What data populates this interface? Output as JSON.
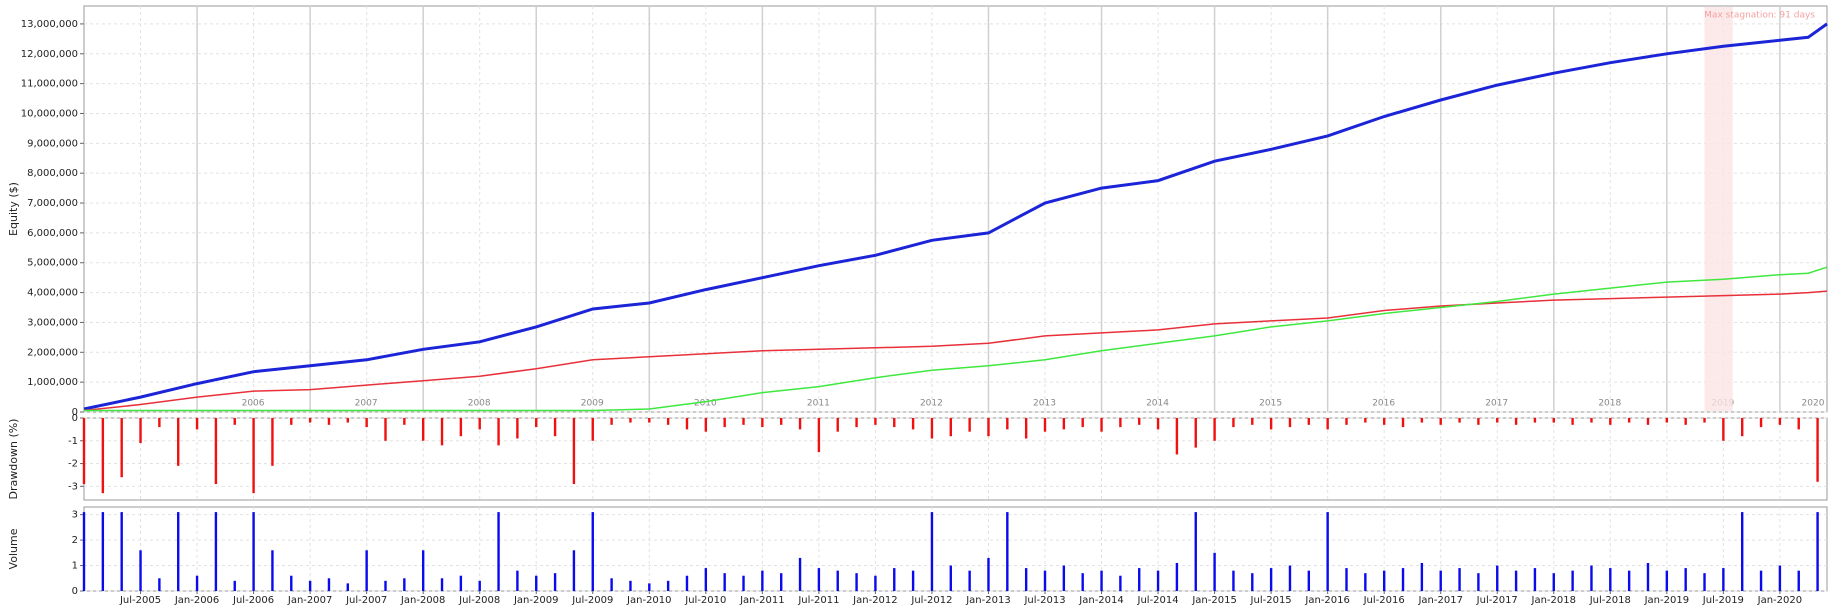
{
  "chart_data": [
    {
      "type": "line",
      "ylabel": "Equity ($)",
      "x": [
        "2005-01",
        "2005-07",
        "2006-01",
        "2006-07",
        "2007-01",
        "2007-07",
        "2008-01",
        "2008-07",
        "2009-01",
        "2009-07",
        "2010-01",
        "2010-07",
        "2011-01",
        "2011-07",
        "2012-01",
        "2012-07",
        "2013-01",
        "2013-07",
        "2014-01",
        "2014-07",
        "2015-01",
        "2015-07",
        "2016-01",
        "2016-07",
        "2017-01",
        "2017-07",
        "2018-01",
        "2018-07",
        "2019-01",
        "2019-07",
        "2020-01",
        "2020-04",
        "2020-06"
      ],
      "series": [
        {
          "color": "#1c24d8",
          "width": 3,
          "values": [
            100000,
            500000,
            950000,
            1350000,
            1550000,
            1750000,
            2100000,
            2350000,
            2850000,
            3450000,
            3650000,
            4100000,
            4500000,
            4900000,
            5250000,
            5750000,
            6000000,
            7000000,
            7500000,
            7750000,
            8400000,
            8800000,
            9250000,
            9900000,
            10450000,
            10950000,
            11350000,
            11700000,
            12000000,
            12250000,
            12450000,
            12550000,
            13000000
          ]
        },
        {
          "color": "#e8303a",
          "width": 1.5,
          "values": [
            50000,
            250000,
            500000,
            700000,
            750000,
            900000,
            1050000,
            1200000,
            1450000,
            1750000,
            1850000,
            1950000,
            2050000,
            2100000,
            2150000,
            2200000,
            2300000,
            2550000,
            2650000,
            2750000,
            2950000,
            3050000,
            3150000,
            3400000,
            3550000,
            3650000,
            3750000,
            3800000,
            3850000,
            3900000,
            3950000,
            4000000,
            4050000
          ]
        },
        {
          "color": "#3ee83e",
          "width": 1.5,
          "values": [
            50000,
            50000,
            50000,
            50000,
            50000,
            50000,
            50000,
            50000,
            50000,
            50000,
            100000,
            350000,
            650000,
            850000,
            1150000,
            1400000,
            1550000,
            1750000,
            2050000,
            2300000,
            2550000,
            2850000,
            3050000,
            3300000,
            3500000,
            3700000,
            3950000,
            4150000,
            4350000,
            4450000,
            4600000,
            4650000,
            4850000
          ]
        }
      ],
      "xlim": [
        "2005-01",
        "2020-06"
      ],
      "ylim": [
        0,
        13600000
      ],
      "yticks": [
        0,
        {
          "value": 1000000,
          "label": "1,000,000"
        },
        {
          "value": 2000000,
          "label": "2,000,000"
        },
        {
          "value": 3000000,
          "label": "3,000,000"
        },
        {
          "value": 4000000,
          "label": "4,000,000"
        },
        {
          "value": 5000000,
          "label": "5,000,000"
        },
        {
          "value": 6000000,
          "label": "6,000,000"
        },
        {
          "value": 7000000,
          "label": "7,000,000"
        },
        {
          "value": 8000000,
          "label": "8,000,000"
        },
        {
          "value": 9000000,
          "label": "9,000,000"
        },
        {
          "value": 10000000,
          "label": "10,000,000"
        },
        {
          "value": 11000000,
          "label": "11,000,000"
        },
        {
          "value": 12000000,
          "label": "12,000,000"
        },
        {
          "value": 13000000,
          "label": "13,000,000"
        }
      ],
      "year_markers": [
        {
          "value": "2006-01",
          "label": "2006"
        },
        {
          "value": "2007-01",
          "label": "2007"
        },
        {
          "value": "2008-01",
          "label": "2008"
        },
        {
          "value": "2009-01",
          "label": "2009"
        },
        {
          "value": "2010-01",
          "label": "2010"
        },
        {
          "value": "2011-01",
          "label": "2011"
        },
        {
          "value": "2012-01",
          "label": "2012"
        },
        {
          "value": "2013-01",
          "label": "2013"
        },
        {
          "value": "2014-01",
          "label": "2014"
        },
        {
          "value": "2015-01",
          "label": "2015"
        },
        {
          "value": "2016-01",
          "label": "2016"
        },
        {
          "value": "2017-01",
          "label": "2017"
        },
        {
          "value": "2018-01",
          "label": "2018"
        },
        {
          "value": "2019-01",
          "label": "2019"
        },
        {
          "value": "2020-01",
          "label": "2020"
        }
      ],
      "annotation": {
        "text": "Max stagnation: 91 days",
        "x_start": "2019-05",
        "x_end": "2019-08"
      },
      "grid": true
    },
    {
      "type": "bar",
      "ylabel": "Drawdown (%)",
      "color": "#f01010",
      "x": [
        "2005-01",
        "2005-03",
        "2005-05",
        "2005-07",
        "2005-09",
        "2005-11",
        "2006-01",
        "2006-03",
        "2006-05",
        "2006-07",
        "2006-09",
        "2006-11",
        "2007-01",
        "2007-03",
        "2007-05",
        "2007-07",
        "2007-09",
        "2007-11",
        "2008-01",
        "2008-03",
        "2008-05",
        "2008-07",
        "2008-09",
        "2008-11",
        "2009-01",
        "2009-03",
        "2009-05",
        "2009-07",
        "2009-09",
        "2009-11",
        "2010-01",
        "2010-03",
        "2010-05",
        "2010-07",
        "2010-09",
        "2010-11",
        "2011-01",
        "2011-03",
        "2011-05",
        "2011-07",
        "2011-09",
        "2011-11",
        "2012-01",
        "2012-03",
        "2012-05",
        "2012-07",
        "2012-09",
        "2012-11",
        "2013-01",
        "2013-03",
        "2013-05",
        "2013-07",
        "2013-09",
        "2013-11",
        "2014-01",
        "2014-03",
        "2014-05",
        "2014-07",
        "2014-09",
        "2014-11",
        "2015-01",
        "2015-03",
        "2015-05",
        "2015-07",
        "2015-09",
        "2015-11",
        "2016-01",
        "2016-03",
        "2016-05",
        "2016-07",
        "2016-09",
        "2016-11",
        "2017-01",
        "2017-03",
        "2017-05",
        "2017-07",
        "2017-09",
        "2017-11",
        "2018-01",
        "2018-03",
        "2018-05",
        "2018-07",
        "2018-09",
        "2018-11",
        "2019-01",
        "2019-03",
        "2019-05",
        "2019-07",
        "2019-09",
        "2019-11",
        "2020-01",
        "2020-03",
        "2020-05"
      ],
      "values": [
        -2.9,
        -3.3,
        -2.6,
        -1.1,
        -0.4,
        -2.1,
        -0.5,
        -2.9,
        -0.3,
        -3.3,
        -2.1,
        -0.3,
        -0.2,
        -0.3,
        -0.2,
        -0.4,
        -1.0,
        -0.3,
        -1.0,
        -1.2,
        -0.8,
        -0.5,
        -1.2,
        -0.9,
        -0.4,
        -0.8,
        -2.9,
        -1.0,
        -0.3,
        -0.2,
        -0.2,
        -0.3,
        -0.5,
        -0.6,
        -0.4,
        -0.3,
        -0.4,
        -0.3,
        -0.5,
        -1.5,
        -0.6,
        -0.4,
        -0.3,
        -0.4,
        -0.5,
        -0.9,
        -0.8,
        -0.6,
        -0.8,
        -0.5,
        -0.9,
        -0.6,
        -0.5,
        -0.4,
        -0.6,
        -0.4,
        -0.3,
        -0.5,
        -1.6,
        -1.3,
        -1.0,
        -0.4,
        -0.3,
        -0.5,
        -0.4,
        -0.3,
        -0.5,
        -0.3,
        -0.2,
        -0.3,
        -0.4,
        -0.2,
        -0.3,
        -0.2,
        -0.3,
        -0.2,
        -0.3,
        -0.2,
        -0.2,
        -0.3,
        -0.2,
        -0.3,
        -0.2,
        -0.3,
        -0.2,
        -0.3,
        -0.2,
        -1.0,
        -0.8,
        -0.4,
        -0.3,
        -0.5,
        -2.8
      ],
      "xlim": [
        "2005-01",
        "2020-06"
      ],
      "ylim": [
        -3.6,
        0
      ],
      "yticks": [
        0,
        -1,
        -2,
        -3
      ],
      "grid": true
    },
    {
      "type": "bar",
      "ylabel": "Volume",
      "color": "#0a0aee",
      "x": [
        "2005-01",
        "2005-03",
        "2005-05",
        "2005-07",
        "2005-09",
        "2005-11",
        "2006-01",
        "2006-03",
        "2006-05",
        "2006-07",
        "2006-09",
        "2006-11",
        "2007-01",
        "2007-03",
        "2007-05",
        "2007-07",
        "2007-09",
        "2007-11",
        "2008-01",
        "2008-03",
        "2008-05",
        "2008-07",
        "2008-09",
        "2008-11",
        "2009-01",
        "2009-03",
        "2009-05",
        "2009-07",
        "2009-09",
        "2009-11",
        "2010-01",
        "2010-03",
        "2010-05",
        "2010-07",
        "2010-09",
        "2010-11",
        "2011-01",
        "2011-03",
        "2011-05",
        "2011-07",
        "2011-09",
        "2011-11",
        "2012-01",
        "2012-03",
        "2012-05",
        "2012-07",
        "2012-09",
        "2012-11",
        "2013-01",
        "2013-03",
        "2013-05",
        "2013-07",
        "2013-09",
        "2013-11",
        "2014-01",
        "2014-03",
        "2014-05",
        "2014-07",
        "2014-09",
        "2014-11",
        "2015-01",
        "2015-03",
        "2015-05",
        "2015-07",
        "2015-09",
        "2015-11",
        "2016-01",
        "2016-03",
        "2016-05",
        "2016-07",
        "2016-09",
        "2016-11",
        "2017-01",
        "2017-03",
        "2017-05",
        "2017-07",
        "2017-09",
        "2017-11",
        "2018-01",
        "2018-03",
        "2018-05",
        "2018-07",
        "2018-09",
        "2018-11",
        "2019-01",
        "2019-03",
        "2019-05",
        "2019-07",
        "2019-09",
        "2019-11",
        "2020-01",
        "2020-03",
        "2020-05"
      ],
      "values": [
        3.1,
        3.1,
        3.1,
        1.6,
        0.5,
        3.1,
        0.6,
        3.1,
        0.4,
        3.1,
        1.6,
        0.6,
        0.4,
        0.5,
        0.3,
        1.6,
        0.4,
        0.5,
        1.6,
        0.5,
        0.6,
        0.4,
        3.1,
        0.8,
        0.6,
        0.7,
        1.6,
        3.1,
        0.5,
        0.4,
        0.3,
        0.4,
        0.6,
        0.9,
        0.7,
        0.6,
        0.8,
        0.7,
        1.3,
        0.9,
        0.8,
        0.7,
        0.6,
        0.9,
        0.8,
        3.1,
        1.0,
        0.8,
        1.3,
        3.1,
        0.9,
        0.8,
        1.0,
        0.7,
        0.8,
        0.6,
        0.9,
        0.8,
        1.1,
        3.1,
        1.5,
        0.8,
        0.7,
        0.9,
        1.0,
        0.8,
        3.1,
        0.9,
        0.7,
        0.8,
        0.9,
        1.1,
        0.8,
        0.9,
        0.7,
        1.0,
        0.8,
        0.9,
        0.7,
        0.8,
        1.0,
        0.9,
        0.8,
        1.1,
        0.8,
        0.9,
        0.7,
        0.9,
        3.1,
        0.8,
        1.0,
        0.8,
        3.1
      ],
      "xlim": [
        "2005-01",
        "2020-06"
      ],
      "ylim": [
        0,
        3.3
      ],
      "yticks": [
        0,
        1,
        2,
        3
      ],
      "xticks": [
        {
          "value": "2005-07",
          "label": "Jul-2005"
        },
        {
          "value": "2006-01",
          "label": "Jan-2006"
        },
        {
          "value": "2006-07",
          "label": "Jul-2006"
        },
        {
          "value": "2007-01",
          "label": "Jan-2007"
        },
        {
          "value": "2007-07",
          "label": "Jul-2007"
        },
        {
          "value": "2008-01",
          "label": "Jan-2008"
        },
        {
          "value": "2008-07",
          "label": "Jul-2008"
        },
        {
          "value": "2009-01",
          "label": "Jan-2009"
        },
        {
          "value": "2009-07",
          "label": "Jul-2009"
        },
        {
          "value": "2010-01",
          "label": "Jan-2010"
        },
        {
          "value": "2010-07",
          "label": "Jul-2010"
        },
        {
          "value": "2011-01",
          "label": "Jan-2011"
        },
        {
          "value": "2011-07",
          "label": "Jul-2011"
        },
        {
          "value": "2012-01",
          "label": "Jan-2012"
        },
        {
          "value": "2012-07",
          "label": "Jul-2012"
        },
        {
          "value": "2013-01",
          "label": "Jan-2013"
        },
        {
          "value": "2013-07",
          "label": "Jul-2013"
        },
        {
          "value": "2014-01",
          "label": "Jan-2014"
        },
        {
          "value": "2014-07",
          "label": "Jul-2014"
        },
        {
          "value": "2015-01",
          "label": "Jan-2015"
        },
        {
          "value": "2015-07",
          "label": "Jul-2015"
        },
        {
          "value": "2016-01",
          "label": "Jan-2016"
        },
        {
          "value": "2016-07",
          "label": "Jul-2016"
        },
        {
          "value": "2017-01",
          "label": "Jan-2017"
        },
        {
          "value": "2017-07",
          "label": "Jul-2017"
        },
        {
          "value": "2018-01",
          "label": "Jan-2018"
        },
        {
          "value": "2018-07",
          "label": "Jul-2018"
        },
        {
          "value": "2019-01",
          "label": "Jan-2019"
        },
        {
          "value": "2019-07",
          "label": "Jul-2019"
        },
        {
          "value": "2020-01",
          "label": "Jan-2020"
        }
      ],
      "grid": true
    }
  ]
}
